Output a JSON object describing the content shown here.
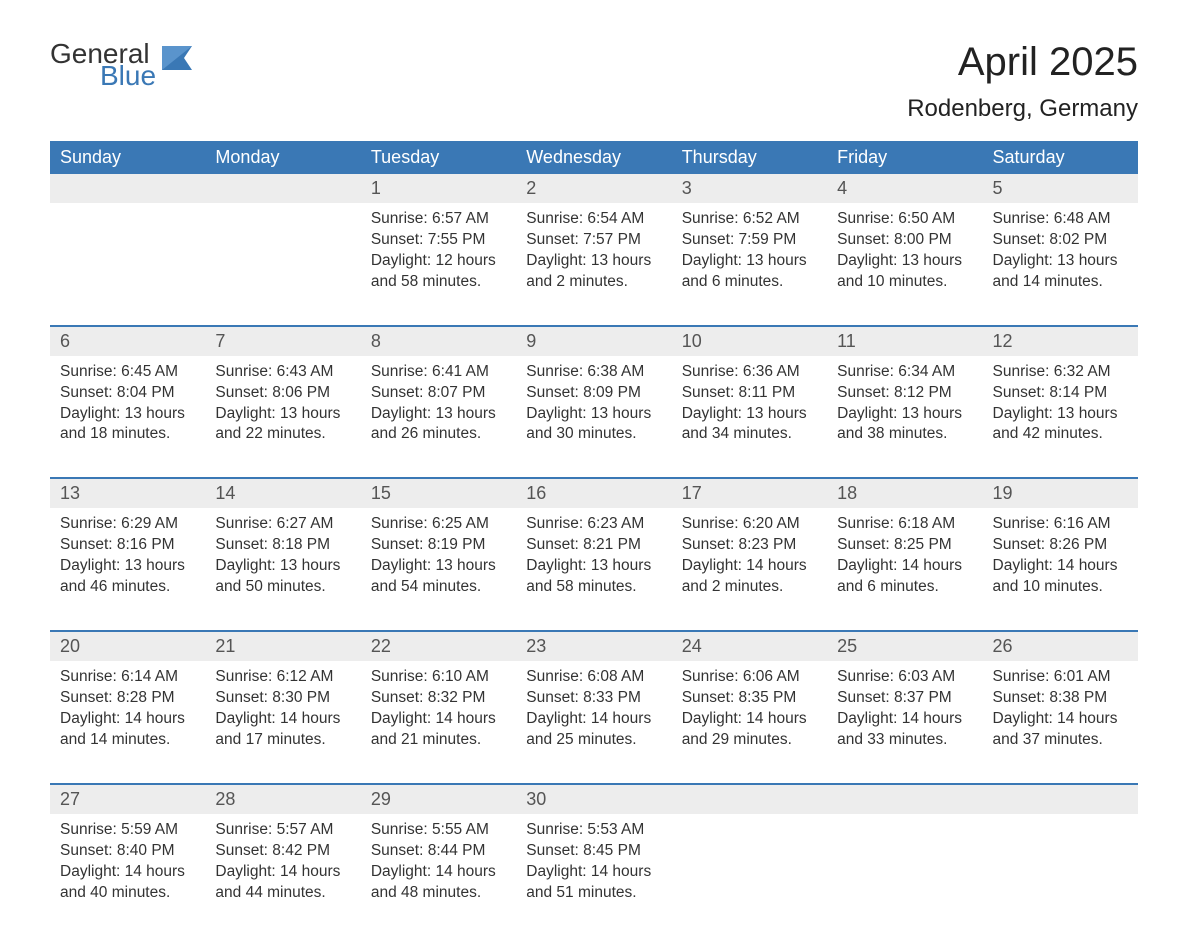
{
  "logo": {
    "text1": "General",
    "text2": "Blue",
    "icon_color": "#3a78b5"
  },
  "title": "April 2025",
  "location": "Rodenberg, Germany",
  "colors": {
    "header_bg": "#3a78b5",
    "header_text": "#ffffff",
    "daynum_bg": "#ededed",
    "row_border": "#3a78b5",
    "body_text": "#333333",
    "background": "#ffffff"
  },
  "columns": [
    "Sunday",
    "Monday",
    "Tuesday",
    "Wednesday",
    "Thursday",
    "Friday",
    "Saturday"
  ],
  "weeks": [
    [
      null,
      null,
      {
        "n": "1",
        "sunrise": "6:57 AM",
        "sunset": "7:55 PM",
        "daylight": "12 hours and 58 minutes."
      },
      {
        "n": "2",
        "sunrise": "6:54 AM",
        "sunset": "7:57 PM",
        "daylight": "13 hours and 2 minutes."
      },
      {
        "n": "3",
        "sunrise": "6:52 AM",
        "sunset": "7:59 PM",
        "daylight": "13 hours and 6 minutes."
      },
      {
        "n": "4",
        "sunrise": "6:50 AM",
        "sunset": "8:00 PM",
        "daylight": "13 hours and 10 minutes."
      },
      {
        "n": "5",
        "sunrise": "6:48 AM",
        "sunset": "8:02 PM",
        "daylight": "13 hours and 14 minutes."
      }
    ],
    [
      {
        "n": "6",
        "sunrise": "6:45 AM",
        "sunset": "8:04 PM",
        "daylight": "13 hours and 18 minutes."
      },
      {
        "n": "7",
        "sunrise": "6:43 AM",
        "sunset": "8:06 PM",
        "daylight": "13 hours and 22 minutes."
      },
      {
        "n": "8",
        "sunrise": "6:41 AM",
        "sunset": "8:07 PM",
        "daylight": "13 hours and 26 minutes."
      },
      {
        "n": "9",
        "sunrise": "6:38 AM",
        "sunset": "8:09 PM",
        "daylight": "13 hours and 30 minutes."
      },
      {
        "n": "10",
        "sunrise": "6:36 AM",
        "sunset": "8:11 PM",
        "daylight": "13 hours and 34 minutes."
      },
      {
        "n": "11",
        "sunrise": "6:34 AM",
        "sunset": "8:12 PM",
        "daylight": "13 hours and 38 minutes."
      },
      {
        "n": "12",
        "sunrise": "6:32 AM",
        "sunset": "8:14 PM",
        "daylight": "13 hours and 42 minutes."
      }
    ],
    [
      {
        "n": "13",
        "sunrise": "6:29 AM",
        "sunset": "8:16 PM",
        "daylight": "13 hours and 46 minutes."
      },
      {
        "n": "14",
        "sunrise": "6:27 AM",
        "sunset": "8:18 PM",
        "daylight": "13 hours and 50 minutes."
      },
      {
        "n": "15",
        "sunrise": "6:25 AM",
        "sunset": "8:19 PM",
        "daylight": "13 hours and 54 minutes."
      },
      {
        "n": "16",
        "sunrise": "6:23 AM",
        "sunset": "8:21 PM",
        "daylight": "13 hours and 58 minutes."
      },
      {
        "n": "17",
        "sunrise": "6:20 AM",
        "sunset": "8:23 PM",
        "daylight": "14 hours and 2 minutes."
      },
      {
        "n": "18",
        "sunrise": "6:18 AM",
        "sunset": "8:25 PM",
        "daylight": "14 hours and 6 minutes."
      },
      {
        "n": "19",
        "sunrise": "6:16 AM",
        "sunset": "8:26 PM",
        "daylight": "14 hours and 10 minutes."
      }
    ],
    [
      {
        "n": "20",
        "sunrise": "6:14 AM",
        "sunset": "8:28 PM",
        "daylight": "14 hours and 14 minutes."
      },
      {
        "n": "21",
        "sunrise": "6:12 AM",
        "sunset": "8:30 PM",
        "daylight": "14 hours and 17 minutes."
      },
      {
        "n": "22",
        "sunrise": "6:10 AM",
        "sunset": "8:32 PM",
        "daylight": "14 hours and 21 minutes."
      },
      {
        "n": "23",
        "sunrise": "6:08 AM",
        "sunset": "8:33 PM",
        "daylight": "14 hours and 25 minutes."
      },
      {
        "n": "24",
        "sunrise": "6:06 AM",
        "sunset": "8:35 PM",
        "daylight": "14 hours and 29 minutes."
      },
      {
        "n": "25",
        "sunrise": "6:03 AM",
        "sunset": "8:37 PM",
        "daylight": "14 hours and 33 minutes."
      },
      {
        "n": "26",
        "sunrise": "6:01 AM",
        "sunset": "8:38 PM",
        "daylight": "14 hours and 37 minutes."
      }
    ],
    [
      {
        "n": "27",
        "sunrise": "5:59 AM",
        "sunset": "8:40 PM",
        "daylight": "14 hours and 40 minutes."
      },
      {
        "n": "28",
        "sunrise": "5:57 AM",
        "sunset": "8:42 PM",
        "daylight": "14 hours and 44 minutes."
      },
      {
        "n": "29",
        "sunrise": "5:55 AM",
        "sunset": "8:44 PM",
        "daylight": "14 hours and 48 minutes."
      },
      {
        "n": "30",
        "sunrise": "5:53 AM",
        "sunset": "8:45 PM",
        "daylight": "14 hours and 51 minutes."
      },
      null,
      null,
      null
    ]
  ],
  "labels": {
    "sunrise": "Sunrise: ",
    "sunset": "Sunset: ",
    "daylight": "Daylight: "
  }
}
